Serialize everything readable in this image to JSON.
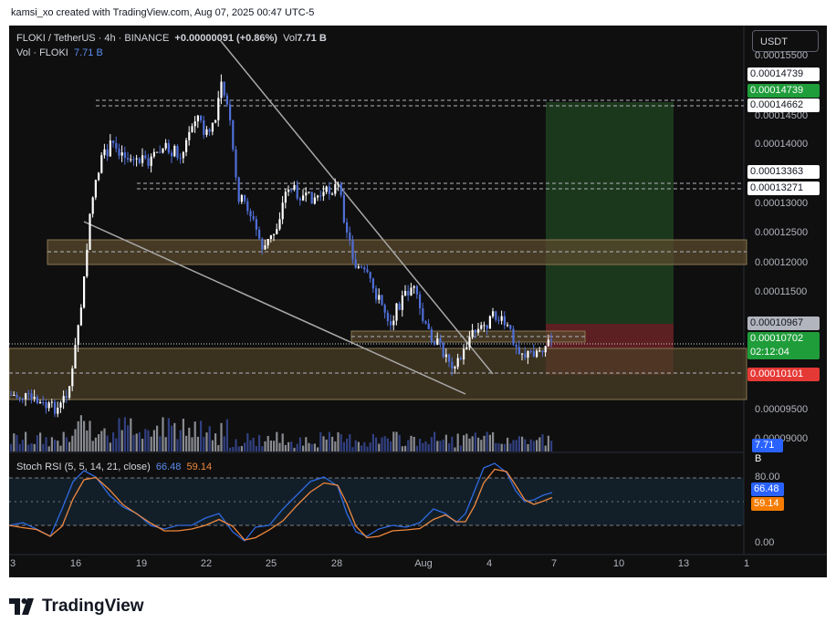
{
  "caption": "kamsi_xo created with TradingView.com, Aug 07, 2025 00:47 UTC-5",
  "legend": {
    "symbol": "FLOKI / TetherUS · 4h · BINANCE",
    "change": "+0.00000091 (+0.86%)",
    "vol_prefix": "Vol",
    "vol_value": "7.71 B",
    "vol_row_label": "Vol · FLOKI",
    "vol_row_value": "7.71 B"
  },
  "currency_button": "USDT",
  "price_axis": {
    "ticks": [
      "0.00015500",
      "0.00014500",
      "0.00014000",
      "0.00013000",
      "0.00012500",
      "0.00012000",
      "0.00011500",
      "0.00009500",
      "0.00009000"
    ],
    "labels": {
      "level_upper": "0.00014739",
      "target": "0.00014739",
      "level_14662": "0.00014662",
      "level_13363": "0.00013363",
      "level_13271": "0.00013271",
      "entry": "0.00010967",
      "last_price": "0.00010702",
      "countdown": "02:12:04",
      "stop": "0.00010101",
      "volume": "7.71 B"
    }
  },
  "stoch": {
    "title": "Stoch RSI (5, 5, 14, 21, close)",
    "k_value": "66.48",
    "d_value": "59.14",
    "ticks": [
      "80.00",
      "0.00"
    ],
    "k_label": "66.48",
    "d_label": "59.14"
  },
  "time_axis": [
    "3",
    "16",
    "19",
    "22",
    "25",
    "28",
    "Aug",
    "4",
    "7",
    "10",
    "13",
    "1"
  ],
  "colors": {
    "background": "#0f0f0f",
    "candle_up": "#ffffff",
    "candle_down": "#4f6fd8",
    "zone": "#5a4a2e",
    "long_target": "#1e3f1e",
    "long_stop": "#6a2226",
    "target_label": "#1f9d3a",
    "stop_label": "#e53935",
    "stoch_k": "#2f6ae0",
    "stoch_d": "#f0883e"
  },
  "brand": "TradingView"
}
